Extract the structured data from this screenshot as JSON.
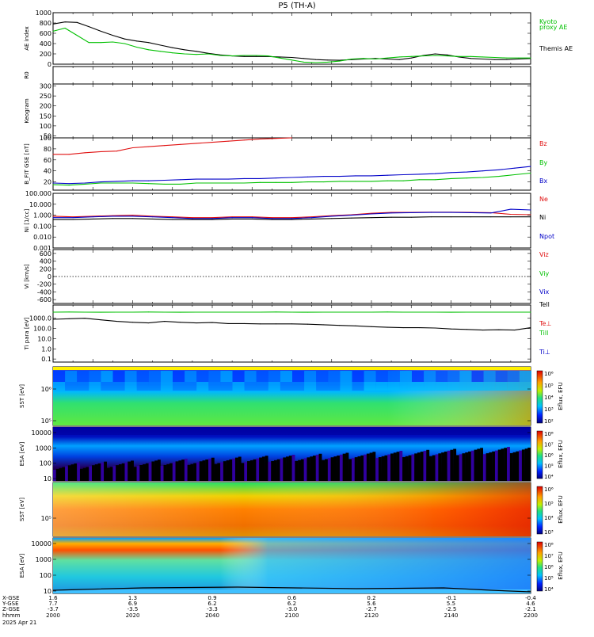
{
  "title": "P5 (TH-A)",
  "colors": {
    "red": "#e01010",
    "green": "#00c000",
    "blue": "#0000c8",
    "black": "#000000"
  },
  "chart_data": [
    {
      "panel": "ae",
      "type": "line",
      "ylabel": "AE index",
      "yticks": [
        "0",
        "200",
        "400",
        "600",
        "800",
        "1000"
      ],
      "ylim": [
        0,
        1000
      ],
      "x": [
        0,
        6,
        12,
        18,
        24,
        30,
        36,
        42,
        48,
        54,
        60,
        66,
        72,
        78,
        84,
        90,
        96,
        102,
        108,
        114,
        120,
        126,
        132,
        138,
        144,
        150,
        156,
        162,
        168,
        174,
        180,
        186,
        192,
        198,
        204,
        210,
        216,
        222,
        228,
        234,
        240
      ],
      "series": [
        {
          "name": "Themis AE",
          "color": "black",
          "values": [
            780,
            820,
            810,
            730,
            640,
            560,
            490,
            450,
            420,
            370,
            320,
            280,
            250,
            210,
            180,
            160,
            150,
            150,
            150,
            140,
            130,
            110,
            90,
            80,
            75,
            90,
            100,
            110,
            100,
            90,
            120,
            170,
            200,
            180,
            140,
            110,
            100,
            90,
            90,
            100,
            110
          ]
        },
        {
          "name": "Kyoto proxy AE",
          "color": "green",
          "values": [
            640,
            700,
            560,
            420,
            420,
            430,
            400,
            330,
            280,
            250,
            220,
            200,
            190,
            200,
            170,
            160,
            170,
            170,
            160,
            120,
            80,
            40,
            30,
            40,
            60,
            100,
            110,
            100,
            120,
            140,
            150,
            160,
            170,
            160,
            150,
            150,
            140,
            130,
            120,
            120,
            120
          ]
        }
      ],
      "legend": [
        "Kyoto",
        "proxy AE",
        "Themis AE"
      ]
    },
    {
      "panel": "rbar",
      "type": "line",
      "ylabel": "R0",
      "series": []
    },
    {
      "panel": "keogram",
      "type": "line",
      "ylabel": "Keogram",
      "yticks": [
        "50",
        "100",
        "150",
        "200",
        "250",
        "300"
      ],
      "ylim": [
        40,
        310
      ],
      "series": []
    },
    {
      "panel": "bfield",
      "type": "line",
      "ylabel": "B_FIT GSE [nT]",
      "yticks": [
        "20",
        "40",
        "60",
        "80",
        "100"
      ],
      "ylim": [
        5,
        100
      ],
      "x": [
        0,
        8,
        16,
        24,
        32,
        40,
        48,
        56,
        64,
        72,
        80,
        88,
        96,
        104,
        112,
        120,
        128,
        136,
        144,
        152,
        160,
        168,
        176,
        184,
        192,
        200,
        208,
        216,
        224,
        232,
        240
      ],
      "series": [
        {
          "name": "Bz",
          "color": "red",
          "values": [
            70,
            70,
            73,
            75,
            76,
            82,
            84,
            86,
            88,
            90,
            92,
            94,
            96,
            98,
            99,
            100,
            null,
            null,
            null,
            null,
            null,
            null,
            null,
            null,
            null,
            null,
            null,
            null,
            null,
            null,
            null
          ]
        },
        {
          "name": "By",
          "color": "green",
          "values": [
            15,
            14,
            16,
            18,
            18,
            18,
            17,
            16,
            16,
            18,
            18,
            18,
            18,
            19,
            19,
            19,
            20,
            20,
            21,
            21,
            21,
            22,
            22,
            24,
            24,
            26,
            27,
            28,
            30,
            33,
            36
          ]
        },
        {
          "name": "Bx",
          "color": "blue",
          "values": [
            18,
            17,
            18,
            20,
            21,
            22,
            22,
            23,
            24,
            25,
            25,
            25,
            26,
            26,
            27,
            28,
            29,
            30,
            30,
            31,
            31,
            32,
            33,
            34,
            35,
            37,
            38,
            40,
            42,
            45,
            48
          ]
        }
      ],
      "legend": [
        "Bz",
        "By",
        "Bx"
      ]
    },
    {
      "panel": "density",
      "type": "line",
      "ylabel": "Ni [1/cc]",
      "yticks": [
        "0.001",
        "0.010",
        "0.100",
        "1.000",
        "10.000",
        "100.000"
      ],
      "ylim": [
        0.001,
        100
      ],
      "scale": "log",
      "x": [
        0,
        10,
        20,
        30,
        40,
        50,
        60,
        70,
        80,
        90,
        100,
        110,
        120,
        130,
        140,
        150,
        160,
        170,
        180,
        190,
        200,
        210,
        220,
        230,
        240
      ],
      "series": [
        {
          "name": "Ne",
          "color": "red",
          "values": [
            0.8,
            0.7,
            0.8,
            0.9,
            1.0,
            0.8,
            0.7,
            0.6,
            0.6,
            0.7,
            0.7,
            0.6,
            0.6,
            0.7,
            0.9,
            1.1,
            1.5,
            1.8,
            1.8,
            1.9,
            1.9,
            1.8,
            1.7,
            1.2,
            1.1
          ]
        },
        {
          "name": "Ni",
          "color": "black",
          "values": [
            0.4,
            0.4,
            0.45,
            0.5,
            0.5,
            0.45,
            0.4,
            0.4,
            0.4,
            0.45,
            0.45,
            0.4,
            0.4,
            0.45,
            0.5,
            0.55,
            0.6,
            0.65,
            0.65,
            0.7,
            0.7,
            0.7,
            0.7,
            0.7,
            0.7
          ]
        },
        {
          "name": "Npot",
          "color": "blue",
          "values": [
            0.6,
            0.6,
            0.7,
            0.8,
            0.8,
            0.7,
            0.6,
            0.5,
            0.5,
            0.6,
            0.6,
            0.5,
            0.5,
            0.6,
            0.8,
            1.0,
            1.3,
            1.6,
            1.7,
            1.8,
            1.8,
            1.7,
            1.6,
            3.5,
            3.0
          ]
        }
      ],
      "legend": [
        "Ne",
        "Ni",
        "Npot"
      ]
    },
    {
      "panel": "velocity",
      "type": "line",
      "ylabel": "Vi [km/s]",
      "yticks": [
        "-600",
        "-400",
        "-200",
        "0",
        "200",
        "400",
        "600"
      ],
      "ylim": [
        -700,
        700
      ],
      "zero_line": true,
      "series": [],
      "legend": [
        "Viz",
        "Viy",
        "Vix"
      ]
    },
    {
      "panel": "temperature",
      "type": "line",
      "ylabel": "Ti para [eV]",
      "yticks": [
        "0.1",
        "1.0",
        "10.0",
        "100.0",
        "1000.0"
      ],
      "ylim": [
        0.05,
        20000
      ],
      "scale": "log",
      "x": [
        0,
        8,
        16,
        24,
        32,
        40,
        48,
        56,
        64,
        72,
        80,
        88,
        96,
        104,
        112,
        120,
        128,
        136,
        144,
        152,
        160,
        168,
        176,
        184,
        192,
        200,
        208,
        216,
        224,
        232,
        240
      ],
      "series": [
        {
          "name": "Tell",
          "color": "green",
          "values": [
            4000,
            4100,
            4000,
            3900,
            4000,
            4000,
            4100,
            4000,
            3900,
            4000,
            4000,
            4000,
            4000,
            4000,
            4100,
            4000,
            3900,
            4000,
            4000,
            4000,
            4000,
            4100,
            4000,
            4000,
            4000,
            3900,
            4000,
            4000,
            4000,
            4000,
            4000
          ]
        },
        {
          "name": "Ti",
          "color": "black",
          "values": [
            800,
            900,
            1000,
            700,
            500,
            400,
            350,
            500,
            400,
            350,
            380,
            300,
            300,
            280,
            280,
            280,
            260,
            230,
            200,
            180,
            150,
            130,
            120,
            120,
            110,
            90,
            80,
            70,
            75,
            70,
            120
          ]
        }
      ],
      "legend": [
        "Tell",
        "Te⊥",
        "Till",
        "Ti⊥"
      ]
    },
    {
      "panel": "sst_electron",
      "type": "heatmap",
      "ylabel": "SST [eV]",
      "yticks": [
        "10⁵",
        "10⁶"
      ],
      "colorbar_label": "Eflux, EFU",
      "colorbar_ticks": [
        "10²",
        "10³",
        "10⁴",
        "10⁵",
        "10⁶"
      ]
    },
    {
      "panel": "esa_electron",
      "type": "heatmap",
      "ylabel": "ESA [eV]",
      "yticks": [
        "10",
        "100",
        "1000",
        "10000"
      ],
      "colorbar_label": "Eflux, EFU",
      "colorbar_ticks": [
        "10⁴",
        "10⁵",
        "10⁶",
        "10⁷",
        "10⁸"
      ]
    },
    {
      "panel": "sst_ion",
      "type": "heatmap",
      "ylabel": "SST [eV]",
      "yticks": [
        "10⁵"
      ],
      "colorbar_label": "Eflux, EFU",
      "colorbar_ticks": [
        "10³",
        "10⁴",
        "10⁵",
        "10⁶"
      ]
    },
    {
      "panel": "esa_ion",
      "type": "heatmap",
      "ylabel": "ESA [eV]",
      "yticks": [
        "10",
        "100",
        "1000",
        "10000"
      ],
      "colorbar_label": "Eflux, EFU",
      "colorbar_ticks": [
        "10⁴",
        "10⁵",
        "10⁶",
        "10⁷",
        "10⁸"
      ]
    }
  ],
  "xaxis": {
    "row_labels": [
      "X-GSE",
      "Y-GSE",
      "Z-GSE",
      "hhmm",
      "2025 Apr 21"
    ],
    "ticks": [
      {
        "t": 0,
        "x_gse": "1.6",
        "y_gse": "7.7",
        "z_gse": "-3.7",
        "hhmm": "2000"
      },
      {
        "t": 40,
        "x_gse": "1.3",
        "y_gse": "6.9",
        "z_gse": "-3.5",
        "hhmm": "2020"
      },
      {
        "t": 80,
        "x_gse": "0.9",
        "y_gse": "6.2",
        "z_gse": "-3.3",
        "hhmm": "2040"
      },
      {
        "t": 120,
        "x_gse": "0.6",
        "y_gse": "6.2",
        "z_gse": "-3.0",
        "hhmm": "2100"
      },
      {
        "t": 160,
        "x_gse": "0.2",
        "y_gse": "5.6",
        "z_gse": "-2.7",
        "hhmm": "2120"
      },
      {
        "t": 200,
        "x_gse": "-0.1",
        "y_gse": "5.5",
        "z_gse": "-2.5",
        "hhmm": "2140"
      },
      {
        "t": 240,
        "x_gse": "-0.4",
        "y_gse": "4.6",
        "z_gse": "-2.1",
        "hhmm": "2200"
      }
    ]
  }
}
